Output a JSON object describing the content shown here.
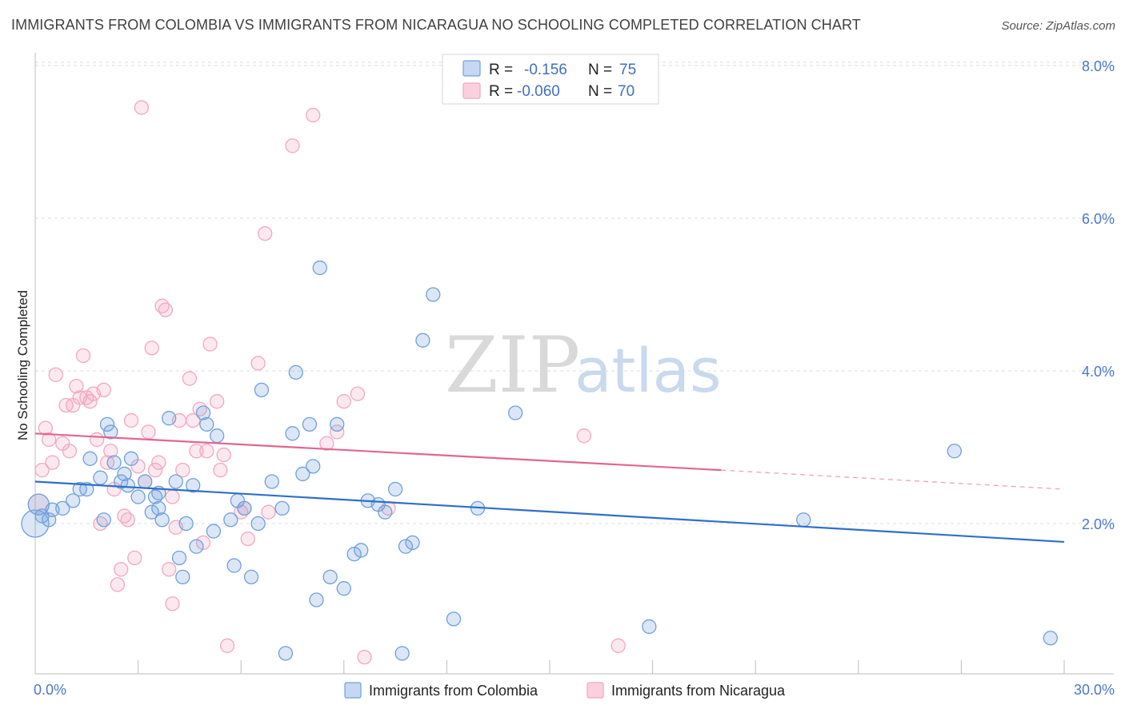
{
  "header": {
    "title": "IMMIGRANTS FROM COLOMBIA VS IMMIGRANTS FROM NICARAGUA NO SCHOOLING COMPLETED CORRELATION CHART",
    "source": "Source: ZipAtlas.com"
  },
  "legend": {
    "r_label": "R =",
    "n_label": "N =",
    "colombia_r": "-0.156",
    "colombia_n": "75",
    "nicaragua_r": "-0.060",
    "nicaragua_n": "70"
  },
  "watermark": {
    "zip": "ZIP",
    "atlas": "atlas"
  },
  "colors": {
    "colombia": "#6fa0dc",
    "colombia_line": "#2f6fcb",
    "nicaragua": "#f2a7bf",
    "nicaragua_line": "#e2668f",
    "tick_label": "#4a78c8"
  },
  "chart_data": {
    "type": "scatter",
    "title": "IMMIGRANTS FROM COLOMBIA VS IMMIGRANTS FROM NICARAGUA NO SCHOOLING COMPLETED CORRELATION CHART",
    "xlabel": "",
    "ylabel": "No Schooling Completed",
    "xlim": [
      0,
      30
    ],
    "ylim": [
      0,
      8.5
    ],
    "x_tick_labels": [
      "0.0%",
      "30.0%"
    ],
    "y_ticks": [
      2,
      4,
      6,
      8
    ],
    "y_tick_labels": [
      "2.0%",
      "4.0%",
      "6.0%",
      "8.0%"
    ],
    "grid": "horizontal dashed",
    "legend_position": "top-center",
    "series": [
      {
        "name": "Immigrants from Colombia",
        "color": "#6fa0dc",
        "trend": [
          [
            0,
            2.55
          ],
          [
            30,
            1.76
          ]
        ],
        "points": [
          [
            0.1,
            2.25
          ],
          [
            0.2,
            2.1
          ],
          [
            0.4,
            2.05
          ],
          [
            0.5,
            2.18
          ],
          [
            0.8,
            2.2
          ],
          [
            1.1,
            2.3
          ],
          [
            1.3,
            2.45
          ],
          [
            1.5,
            2.45
          ],
          [
            1.6,
            2.85
          ],
          [
            1.9,
            2.6
          ],
          [
            2.0,
            2.05
          ],
          [
            2.1,
            3.3
          ],
          [
            2.2,
            3.2
          ],
          [
            2.3,
            2.8
          ],
          [
            2.5,
            2.55
          ],
          [
            2.6,
            2.65
          ],
          [
            2.7,
            2.5
          ],
          [
            2.8,
            2.85
          ],
          [
            3.0,
            2.35
          ],
          [
            3.2,
            2.55
          ],
          [
            3.4,
            2.15
          ],
          [
            3.5,
            2.35
          ],
          [
            3.6,
            2.4
          ],
          [
            3.7,
            2.05
          ],
          [
            3.9,
            3.38
          ],
          [
            4.1,
            2.55
          ],
          [
            4.2,
            1.55
          ],
          [
            4.3,
            1.3
          ],
          [
            4.4,
            2.0
          ],
          [
            4.6,
            2.5
          ],
          [
            4.7,
            1.7
          ],
          [
            4.9,
            3.45
          ],
          [
            5.0,
            3.3
          ],
          [
            5.2,
            1.9
          ],
          [
            5.3,
            3.15
          ],
          [
            5.7,
            2.05
          ],
          [
            5.8,
            1.45
          ],
          [
            5.9,
            2.3
          ],
          [
            6.1,
            2.2
          ],
          [
            6.3,
            1.3
          ],
          [
            6.5,
            2.0
          ],
          [
            6.6,
            3.75
          ],
          [
            6.9,
            2.55
          ],
          [
            7.2,
            2.2
          ],
          [
            7.5,
            3.18
          ],
          [
            7.6,
            3.98
          ],
          [
            7.8,
            2.65
          ],
          [
            8.0,
            3.3
          ],
          [
            8.1,
            2.75
          ],
          [
            8.2,
            1.0
          ],
          [
            8.3,
            5.35
          ],
          [
            8.6,
            1.3
          ],
          [
            8.8,
            3.3
          ],
          [
            9.0,
            1.15
          ],
          [
            9.3,
            1.6
          ],
          [
            9.5,
            1.65
          ],
          [
            9.7,
            2.3
          ],
          [
            10.0,
            2.25
          ],
          [
            10.2,
            2.15
          ],
          [
            10.5,
            2.45
          ],
          [
            10.8,
            1.7
          ],
          [
            11.0,
            1.75
          ],
          [
            10.7,
            0.3
          ],
          [
            11.3,
            4.4
          ],
          [
            11.6,
            5.0
          ],
          [
            12.2,
            0.75
          ],
          [
            12.9,
            2.2
          ],
          [
            14.0,
            3.45
          ],
          [
            17.9,
            0.65
          ],
          [
            22.4,
            2.05
          ],
          [
            26.8,
            2.95
          ],
          [
            29.6,
            0.5
          ],
          [
            7.3,
            0.3
          ],
          [
            0.0,
            2.0
          ],
          [
            3.6,
            2.2
          ]
        ]
      },
      {
        "name": "Immigrants from Nicaragua",
        "color": "#f2a7bf",
        "trend": [
          [
            0,
            3.18
          ],
          [
            20,
            2.7
          ]
        ],
        "trend_dashed": [
          [
            20,
            2.7
          ],
          [
            30,
            2.45
          ]
        ],
        "points": [
          [
            0.1,
            2.25
          ],
          [
            0.2,
            2.7
          ],
          [
            0.3,
            3.25
          ],
          [
            0.4,
            3.1
          ],
          [
            0.5,
            2.8
          ],
          [
            0.6,
            3.95
          ],
          [
            0.8,
            3.05
          ],
          [
            0.9,
            3.55
          ],
          [
            1.0,
            2.95
          ],
          [
            1.1,
            3.55
          ],
          [
            1.2,
            3.8
          ],
          [
            1.3,
            3.65
          ],
          [
            1.4,
            4.2
          ],
          [
            1.5,
            3.65
          ],
          [
            1.6,
            3.6
          ],
          [
            1.7,
            3.7
          ],
          [
            1.8,
            3.1
          ],
          [
            1.9,
            2.0
          ],
          [
            2.0,
            3.75
          ],
          [
            2.1,
            2.8
          ],
          [
            2.2,
            2.95
          ],
          [
            2.3,
            2.45
          ],
          [
            2.4,
            1.2
          ],
          [
            2.5,
            1.4
          ],
          [
            2.6,
            2.1
          ],
          [
            2.7,
            2.05
          ],
          [
            2.8,
            3.35
          ],
          [
            2.9,
            1.55
          ],
          [
            3.0,
            2.75
          ],
          [
            3.1,
            7.45
          ],
          [
            3.2,
            2.55
          ],
          [
            3.3,
            3.2
          ],
          [
            3.4,
            4.3
          ],
          [
            3.5,
            2.7
          ],
          [
            3.6,
            2.8
          ],
          [
            3.7,
            4.85
          ],
          [
            3.8,
            4.8
          ],
          [
            3.9,
            1.4
          ],
          [
            4.0,
            2.35
          ],
          [
            4.1,
            1.95
          ],
          [
            4.2,
            3.35
          ],
          [
            4.3,
            2.7
          ],
          [
            4.5,
            3.9
          ],
          [
            4.6,
            3.35
          ],
          [
            4.7,
            2.95
          ],
          [
            4.8,
            3.5
          ],
          [
            4.9,
            1.75
          ],
          [
            5.0,
            2.95
          ],
          [
            5.1,
            4.35
          ],
          [
            5.3,
            3.6
          ],
          [
            5.4,
            2.7
          ],
          [
            5.5,
            2.9
          ],
          [
            5.6,
            0.4
          ],
          [
            6.0,
            2.15
          ],
          [
            6.1,
            2.2
          ],
          [
            6.2,
            1.8
          ],
          [
            6.5,
            4.1
          ],
          [
            6.7,
            5.8
          ],
          [
            6.8,
            2.15
          ],
          [
            7.5,
            6.95
          ],
          [
            8.1,
            7.35
          ],
          [
            8.5,
            3.05
          ],
          [
            8.8,
            3.2
          ],
          [
            9.0,
            3.6
          ],
          [
            9.4,
            3.7
          ],
          [
            9.6,
            0.25
          ],
          [
            10.3,
            2.2
          ],
          [
            16.0,
            3.15
          ],
          [
            17.0,
            0.4
          ],
          [
            4.0,
            0.95
          ]
        ]
      }
    ]
  },
  "bottom_legend": {
    "colombia": "Immigrants from Colombia",
    "nicaragua": "Immigrants from Nicaragua"
  },
  "axes": {
    "ylabel": "No Schooling Completed",
    "x_left": "0.0%",
    "x_right": "30.0%"
  }
}
